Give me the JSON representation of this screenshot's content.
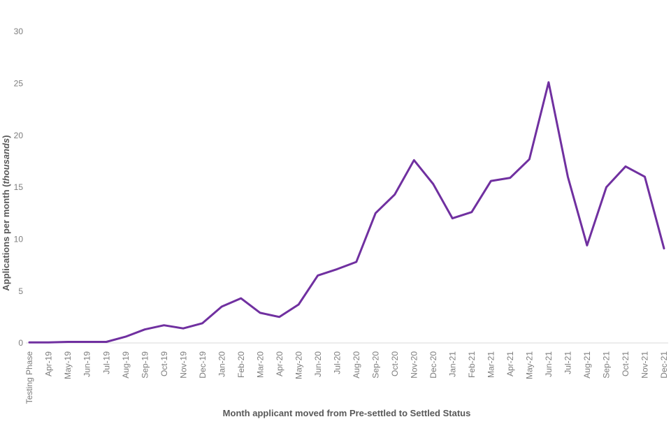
{
  "chart_data": {
    "type": "line",
    "title": "",
    "xlabel": "Month applicant moved from Pre-settled to Settled Status",
    "ylabel": "Applications per month (thousands)",
    "ylabel_parts": {
      "prefix": "Applications per month (",
      "italic": "thousands",
      "suffix": ")"
    },
    "categories": [
      "Testing Phase",
      "Apr-19",
      "May-19",
      "Jun-19",
      "Jul-19",
      "Aug-19",
      "Sep-19",
      "Oct-19",
      "Nov-19",
      "Dec-19",
      "Jan-20",
      "Feb-20",
      "Mar-20",
      "Apr-20",
      "May-20",
      "Jun-20",
      "Jul-20",
      "Aug-20",
      "Sep-20",
      "Oct-20",
      "Nov-20",
      "Dec-20",
      "Jan-21",
      "Feb-21",
      "Mar-21",
      "Apr-21",
      "May-21",
      "Jun-21",
      "Jul-21",
      "Aug-21",
      "Sep-21",
      "Oct-21",
      "Nov-21",
      "Dec-21"
    ],
    "values": [
      0.05,
      0.05,
      0.1,
      0.1,
      0.1,
      0.6,
      1.3,
      1.7,
      1.4,
      1.9,
      3.5,
      4.3,
      2.9,
      2.5,
      3.7,
      6.5,
      7.1,
      7.8,
      12.5,
      14.3,
      17.6,
      15.3,
      12.0,
      12.6,
      15.6,
      15.9,
      17.7,
      25.1,
      16.0,
      9.4,
      15.0,
      17.0,
      16.0,
      9.1
    ],
    "yticks": [
      0,
      5,
      10,
      15,
      20,
      25,
      30
    ],
    "ylim": [
      0,
      30
    ],
    "grid": false,
    "legend_position": "none",
    "line_color": "#7030A0",
    "axis_line_color": "#D9D9D9",
    "tick_label_color": "#7d7d7d",
    "axis_title_color": "#595959"
  }
}
